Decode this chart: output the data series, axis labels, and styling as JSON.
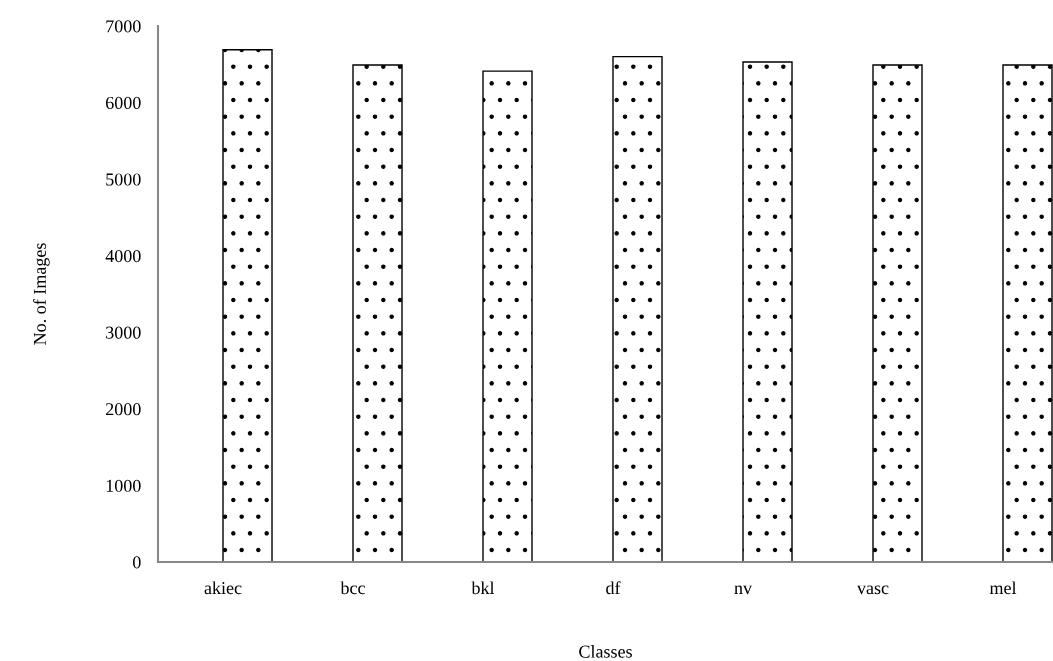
{
  "chart_data": {
    "type": "bar",
    "xlabel": "Classes",
    "ylabel": "No. of Images",
    "categories": [
      "akiec",
      "bcc",
      "bkl",
      "df",
      "nv",
      "vasc",
      "mel"
    ],
    "series": [
      {
        "color": "#000000",
        "values": [
          0,
          null,
          null,
          null,
          null,
          null,
          null
        ]
      },
      {
        "color": "#000000",
        "values": [
          6690,
          6490,
          6410,
          6600,
          6530,
          6490,
          6490
        ]
      }
    ],
    "ylim": [
      0,
      7000
    ],
    "yticks": [
      0,
      1000,
      2000,
      3000,
      4000,
      5000,
      6000,
      7000
    ],
    "grid": false,
    "legend": false
  }
}
